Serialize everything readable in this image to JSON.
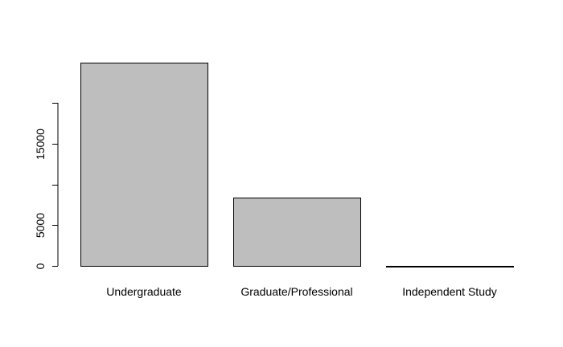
{
  "chart_data": {
    "type": "bar",
    "title": "",
    "xlabel": "",
    "ylabel": "",
    "categories": [
      "Undergraduate",
      "Graduate/Professional",
      "Independent Study"
    ],
    "values": [
      24950,
      8350,
      20
    ],
    "ylim": [
      0,
      25000
    ],
    "y_ticks": [
      0,
      5000,
      10000,
      15000,
      20000
    ],
    "y_tick_labels": [
      "0",
      "5000",
      "",
      "15000",
      ""
    ],
    "grid": false,
    "legend": "none",
    "colors": {
      "bar_fill": "#bebebe",
      "bar_stroke": "#000000",
      "axis": "#000000"
    }
  }
}
